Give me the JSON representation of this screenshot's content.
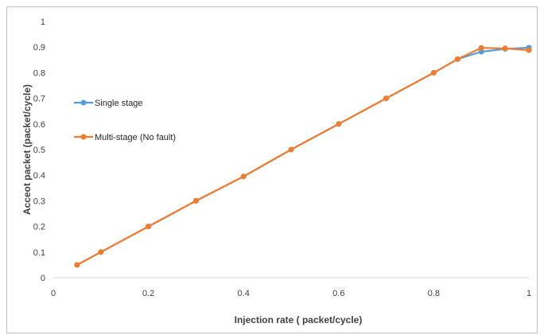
{
  "chart_data": {
    "type": "line",
    "title": "",
    "xlabel": "Injection rate ( packet/cycle)",
    "ylabel": "Acceot packet (packet/cycle)",
    "xlim": [
      0,
      1
    ],
    "ylim": [
      0,
      1
    ],
    "x_ticks": [
      "0",
      "0.2",
      "0.4",
      "0.6",
      "0.8",
      "1"
    ],
    "y_ticks": [
      "0",
      "0.1",
      "0.2",
      "0.3",
      "0.4",
      "0.5",
      "0.6",
      "0.7",
      "0.8",
      "0.9",
      "1"
    ],
    "grid": false,
    "legend_position": "left",
    "series": [
      {
        "name": "Single stage",
        "color": "#5b9bd5",
        "x": [
          0.05,
          0.1,
          0.2,
          0.3,
          0.4,
          0.5,
          0.6,
          0.7,
          0.8,
          0.85,
          0.9,
          0.95,
          1.0
        ],
        "y": [
          0.05,
          0.1,
          0.2,
          0.3,
          0.395,
          0.5,
          0.6,
          0.7,
          0.8,
          0.853,
          0.882,
          0.893,
          0.898
        ]
      },
      {
        "name": "Multi-stage (No fault)",
        "color": "#ed7d31",
        "x": [
          0.05,
          0.1,
          0.2,
          0.3,
          0.4,
          0.5,
          0.6,
          0.7,
          0.8,
          0.85,
          0.9,
          0.95,
          1.0
        ],
        "y": [
          0.05,
          0.1,
          0.2,
          0.3,
          0.395,
          0.5,
          0.6,
          0.7,
          0.8,
          0.853,
          0.897,
          0.895,
          0.888
        ]
      }
    ]
  }
}
